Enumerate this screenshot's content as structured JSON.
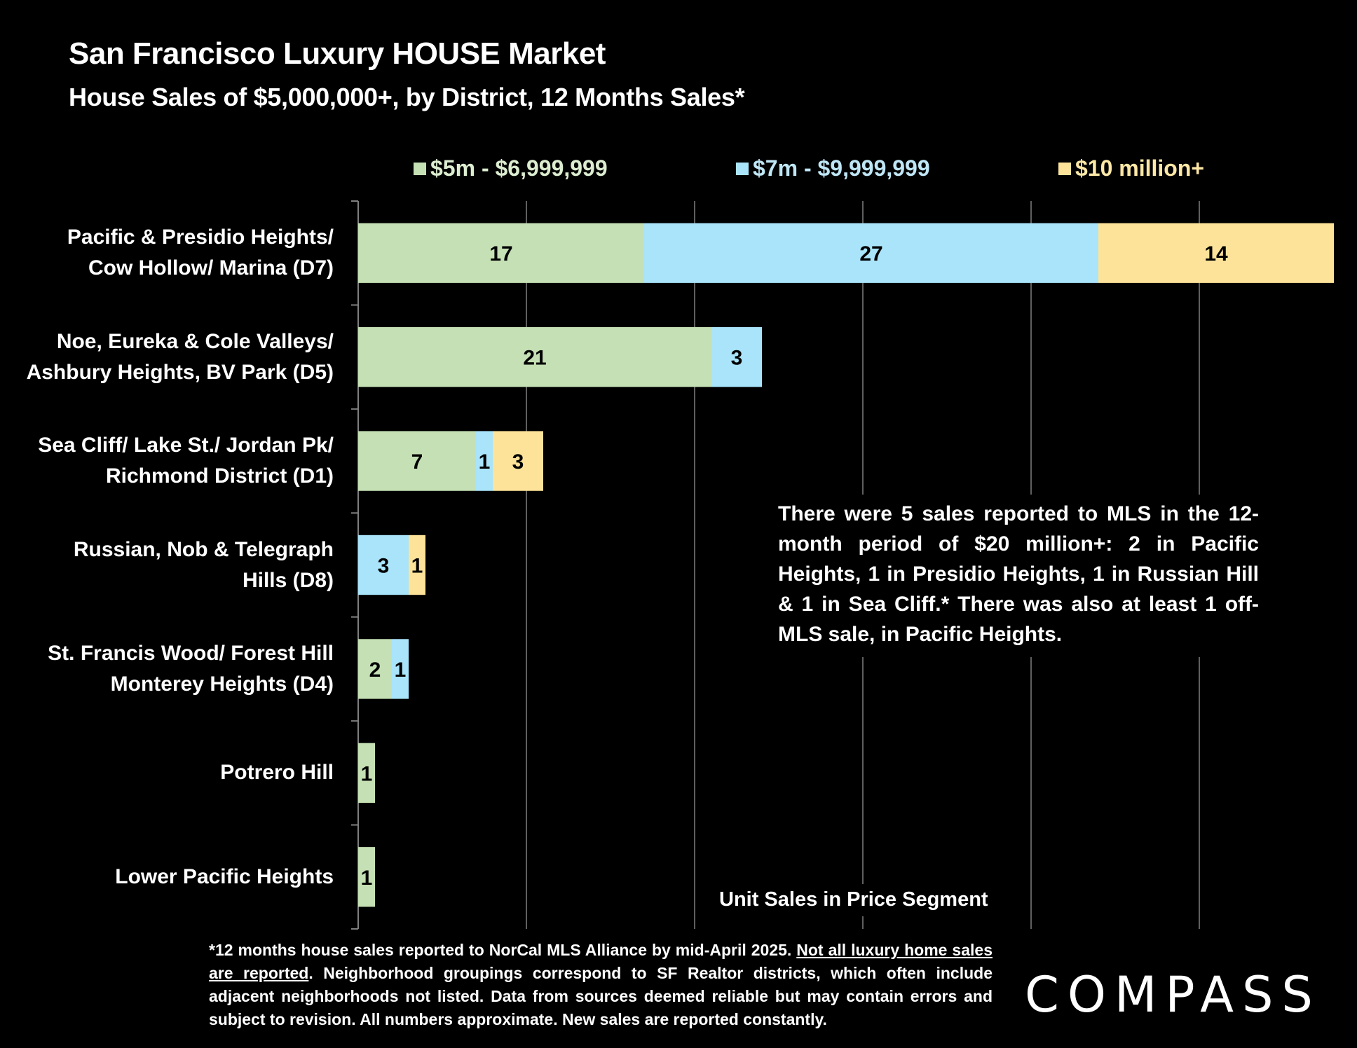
{
  "header": {
    "title": "San Francisco Luxury HOUSE Market",
    "subtitle": "House Sales of $5,000,000+, by District, 12 Months Sales*"
  },
  "annotation": "There were 5 sales reported to MLS in the 12-month period of $20 million+:  2 in Pacific Heights, 1 in Presidio Heights, 1 in Russian Hill & 1 in Sea Cliff.* There was also at least 1 off-MLS sale, in Pacific Heights.",
  "footnote": {
    "part1": "*12 months house sales reported to NorCal MLS Alliance by mid-April 2025. ",
    "underlined": "Not all luxury home sales are reported",
    "part2": ". Neighborhood groupings correspond to SF Realtor districts, which often include adjacent neighborhoods not listed. Data from sources deemed reliable but may contain errors and subject to revision. All numbers approximate. New sales are reported constantly."
  },
  "logo": {
    "text": "COMPASS"
  },
  "colors": {
    "background": "#000000",
    "series1": "#c5e0b4",
    "series2": "#a9e4fa",
    "series3": "#fde39a",
    "gridline": "#7f7f7f",
    "text": "#ffffff"
  },
  "chart_data": {
    "type": "bar",
    "orientation": "horizontal",
    "stacked": true,
    "title": "San Francisco Luxury HOUSE Market",
    "subtitle": "House Sales of $5,000,000+, by District, 12 Months Sales*",
    "xlabel": "Unit Sales in Price Segment",
    "ylabel": "",
    "xlim": [
      0,
      58
    ],
    "x_gridline_step": 10,
    "grid": true,
    "legend_position": "top",
    "data_labels": true,
    "categories": [
      [
        "Pacific & Presidio Heights/",
        "Cow Hollow/ Marina (D7)"
      ],
      [
        "Noe, Eureka & Cole Valleys/",
        "Ashbury Heights, BV Park (D5)"
      ],
      [
        "Sea Cliff/ Lake St./ Jordan Pk/",
        "Richmond District (D1)"
      ],
      [
        "Russian, Nob & Telegraph",
        "Hills (D8)"
      ],
      [
        "St. Francis Wood/ Forest Hill",
        "Monterey Heights (D4)"
      ],
      [
        "Potrero Hill"
      ],
      [
        "Lower Pacific Heights"
      ]
    ],
    "series": [
      {
        "name": "$5m - $6,999,999",
        "color": "#c5e0b4",
        "values": [
          17,
          21,
          7,
          0,
          2,
          1,
          1
        ]
      },
      {
        "name": "$7m - $9,999,999",
        "color": "#a9e4fa",
        "values": [
          27,
          3,
          1,
          3,
          1,
          0,
          0
        ]
      },
      {
        "name": "$10 million+",
        "color": "#fde39a",
        "values": [
          14,
          0,
          3,
          1,
          0,
          0,
          0
        ]
      }
    ]
  }
}
